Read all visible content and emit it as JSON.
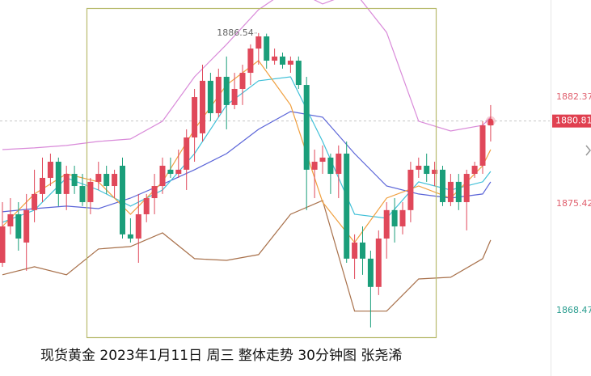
{
  "chart_data": {
    "type": "candlestick",
    "title": "现货黄金 2023年1月11日 周三 整体走势 30分钟图 张尧浠",
    "ylim": [
      1864.21,
      1888.69
    ],
    "yticks": [
      1882.37,
      1875.42,
      1868.47
    ],
    "ytick_colors": [
      "#e0606e",
      "#e0606e",
      "#2a9d8f"
    ],
    "last_price": 1880.81,
    "last_price_color": "#e04050",
    "high_annotation": 1886.54,
    "up_color": "#e0485a",
    "down_color": "#1a9e7a",
    "ohlc": [
      [
        1871.58,
        1875.53,
        1871.32,
        1873.95
      ],
      [
        1873.95,
        1875.79,
        1873.43,
        1874.74
      ],
      [
        1874.74,
        1875.53,
        1872.37,
        1873.16
      ],
      [
        1872.9,
        1876.06,
        1871.06,
        1875.01
      ],
      [
        1875.01,
        1877.64,
        1874.22,
        1876.06
      ],
      [
        1876.06,
        1878.43,
        1875.53,
        1877.11
      ],
      [
        1877.11,
        1878.69,
        1876.58,
        1878.16
      ],
      [
        1878.16,
        1878.43,
        1875.27,
        1876.06
      ],
      [
        1876.06,
        1877.9,
        1875.01,
        1877.37
      ],
      [
        1877.37,
        1877.9,
        1876.06,
        1876.58
      ],
      [
        1876.58,
        1877.37,
        1875.27,
        1875.53
      ],
      [
        1875.53,
        1877.11,
        1874.74,
        1876.85
      ],
      [
        1876.85,
        1878.16,
        1876.32,
        1877.37
      ],
      [
        1877.37,
        1877.9,
        1876.06,
        1876.58
      ],
      [
        1876.58,
        1877.64,
        1875.79,
        1877.37
      ],
      [
        1877.9,
        1878.43,
        1873.16,
        1873.43
      ],
      [
        1873.43,
        1874.48,
        1872.9,
        1873.16
      ],
      [
        1873.16,
        1876.06,
        1871.58,
        1874.74
      ],
      [
        1874.74,
        1876.06,
        1874.22,
        1875.79
      ],
      [
        1875.79,
        1877.37,
        1874.74,
        1876.58
      ],
      [
        1876.58,
        1878.43,
        1876.06,
        1877.9
      ],
      [
        1877.64,
        1878.43,
        1877.11,
        1877.37
      ],
      [
        1877.37,
        1878.95,
        1877.11,
        1877.64
      ],
      [
        1877.64,
        1880.27,
        1876.32,
        1879.74
      ],
      [
        1879.74,
        1882.9,
        1878.16,
        1882.37
      ],
      [
        1880.01,
        1884.48,
        1879.48,
        1883.43
      ],
      [
        1883.43,
        1883.95,
        1880.8,
        1881.32
      ],
      [
        1881.32,
        1884.22,
        1881.06,
        1883.69
      ],
      [
        1883.69,
        1885.01,
        1880.27,
        1881.85
      ],
      [
        1881.85,
        1883.95,
        1881.58,
        1882.9
      ],
      [
        1882.9,
        1884.48,
        1881.85,
        1883.95
      ],
      [
        1883.95,
        1885.8,
        1883.16,
        1885.53
      ],
      [
        1885.53,
        1886.54,
        1884.48,
        1886.32
      ],
      [
        1886.32,
        1886.5,
        1884.22,
        1884.74
      ],
      [
        1884.74,
        1885.53,
        1884.48,
        1885.01
      ],
      [
        1885.01,
        1885.27,
        1884.22,
        1884.48
      ],
      [
        1884.48,
        1885.01,
        1883.95,
        1884.74
      ],
      [
        1884.74,
        1885.01,
        1882.9,
        1883.16
      ],
      [
        1883.16,
        1883.69,
        1875.01,
        1877.64
      ],
      [
        1877.64,
        1878.95,
        1875.79,
        1878.16
      ],
      [
        1878.16,
        1879.22,
        1877.37,
        1878.43
      ],
      [
        1878.43,
        1878.69,
        1876.06,
        1877.37
      ],
      [
        1877.37,
        1879.22,
        1875.79,
        1878.69
      ],
      [
        1878.69,
        1879.48,
        1871.58,
        1871.85
      ],
      [
        1871.85,
        1873.43,
        1870.53,
        1872.9
      ],
      [
        1872.9,
        1873.95,
        1870.8,
        1871.85
      ],
      [
        1871.85,
        1872.37,
        1867.37,
        1870.01
      ],
      [
        1870.01,
        1873.69,
        1869.48,
        1873.16
      ],
      [
        1873.16,
        1875.53,
        1871.85,
        1875.01
      ],
      [
        1875.01,
        1875.79,
        1872.9,
        1873.95
      ],
      [
        1873.95,
        1875.53,
        1873.43,
        1875.01
      ],
      [
        1875.01,
        1878.16,
        1874.22,
        1877.64
      ],
      [
        1877.64,
        1878.43,
        1877.11,
        1877.9
      ],
      [
        1877.9,
        1878.69,
        1876.85,
        1877.37
      ],
      [
        1877.37,
        1878.16,
        1876.58,
        1877.64
      ],
      [
        1877.64,
        1877.9,
        1875.27,
        1875.53
      ],
      [
        1875.53,
        1877.37,
        1875.27,
        1876.85
      ],
      [
        1876.85,
        1877.37,
        1875.01,
        1875.53
      ],
      [
        1875.53,
        1877.64,
        1873.69,
        1877.37
      ],
      [
        1877.37,
        1878.16,
        1877.11,
        1877.9
      ],
      [
        1877.9,
        1880.8,
        1877.37,
        1880.53
      ],
      [
        1880.53,
        1881.85,
        1879.48,
        1880.81
      ]
    ],
    "series": [
      {
        "color": "#d98ad9",
        "x": [
          0,
          4,
          8,
          12,
          16,
          20,
          24,
          28,
          32,
          36,
          40,
          44,
          48,
          52,
          56,
          60,
          61
        ],
        "values": [
          1878.95,
          1879.06,
          1879.22,
          1879.48,
          1879.64,
          1880.8,
          1883.69,
          1885.8,
          1888.06,
          1889.48,
          1888.43,
          1889.22,
          1886.58,
          1880.8,
          1880.16,
          1880.53,
          1881.06
        ]
      },
      {
        "color": "#a8704a",
        "x": [
          0,
          4,
          8,
          12,
          16,
          20,
          24,
          28,
          32,
          36,
          40,
          44,
          48,
          52,
          56,
          60,
          61
        ],
        "values": [
          1870.8,
          1871.32,
          1870.8,
          1872.48,
          1872.64,
          1873.53,
          1871.85,
          1871.74,
          1872.11,
          1874.74,
          1875.64,
          1868.43,
          1868.43,
          1870.53,
          1870.64,
          1871.85,
          1873.06
        ]
      },
      {
        "color": "#5a64d8",
        "x": [
          0,
          4,
          8,
          12,
          16,
          20,
          24,
          28,
          32,
          36,
          40,
          44,
          48,
          52,
          56,
          60,
          61
        ],
        "values": [
          1874.9,
          1875.11,
          1875.27,
          1875.11,
          1875.79,
          1876.69,
          1877.64,
          1878.69,
          1880.27,
          1881.43,
          1881.06,
          1878.69,
          1876.58,
          1876.06,
          1875.79,
          1876.06,
          1876.85
        ]
      },
      {
        "color": "#40c0d8",
        "x": [
          0,
          4,
          8,
          12,
          16,
          20,
          24,
          28,
          32,
          36,
          40,
          44,
          48,
          52,
          56,
          60,
          61
        ],
        "values": [
          1874.22,
          1875.01,
          1877.11,
          1876.32,
          1875.27,
          1876.32,
          1878.69,
          1881.85,
          1883.43,
          1883.69,
          1879.48,
          1874.74,
          1874.48,
          1876.85,
          1876.32,
          1876.85,
          1877.53
        ]
      },
      {
        "color": "#f0a040",
        "x": [
          0,
          4,
          8,
          12,
          16,
          20,
          24,
          28,
          32,
          36,
          40,
          44,
          48,
          52,
          56,
          60,
          61
        ],
        "values": [
          1873.95,
          1876.06,
          1877.37,
          1876.85,
          1874.74,
          1876.85,
          1880.27,
          1883.16,
          1884.74,
          1881.85,
          1875.53,
          1872.9,
          1875.79,
          1876.58,
          1875.79,
          1877.9,
          1878.95
        ]
      }
    ]
  }
}
